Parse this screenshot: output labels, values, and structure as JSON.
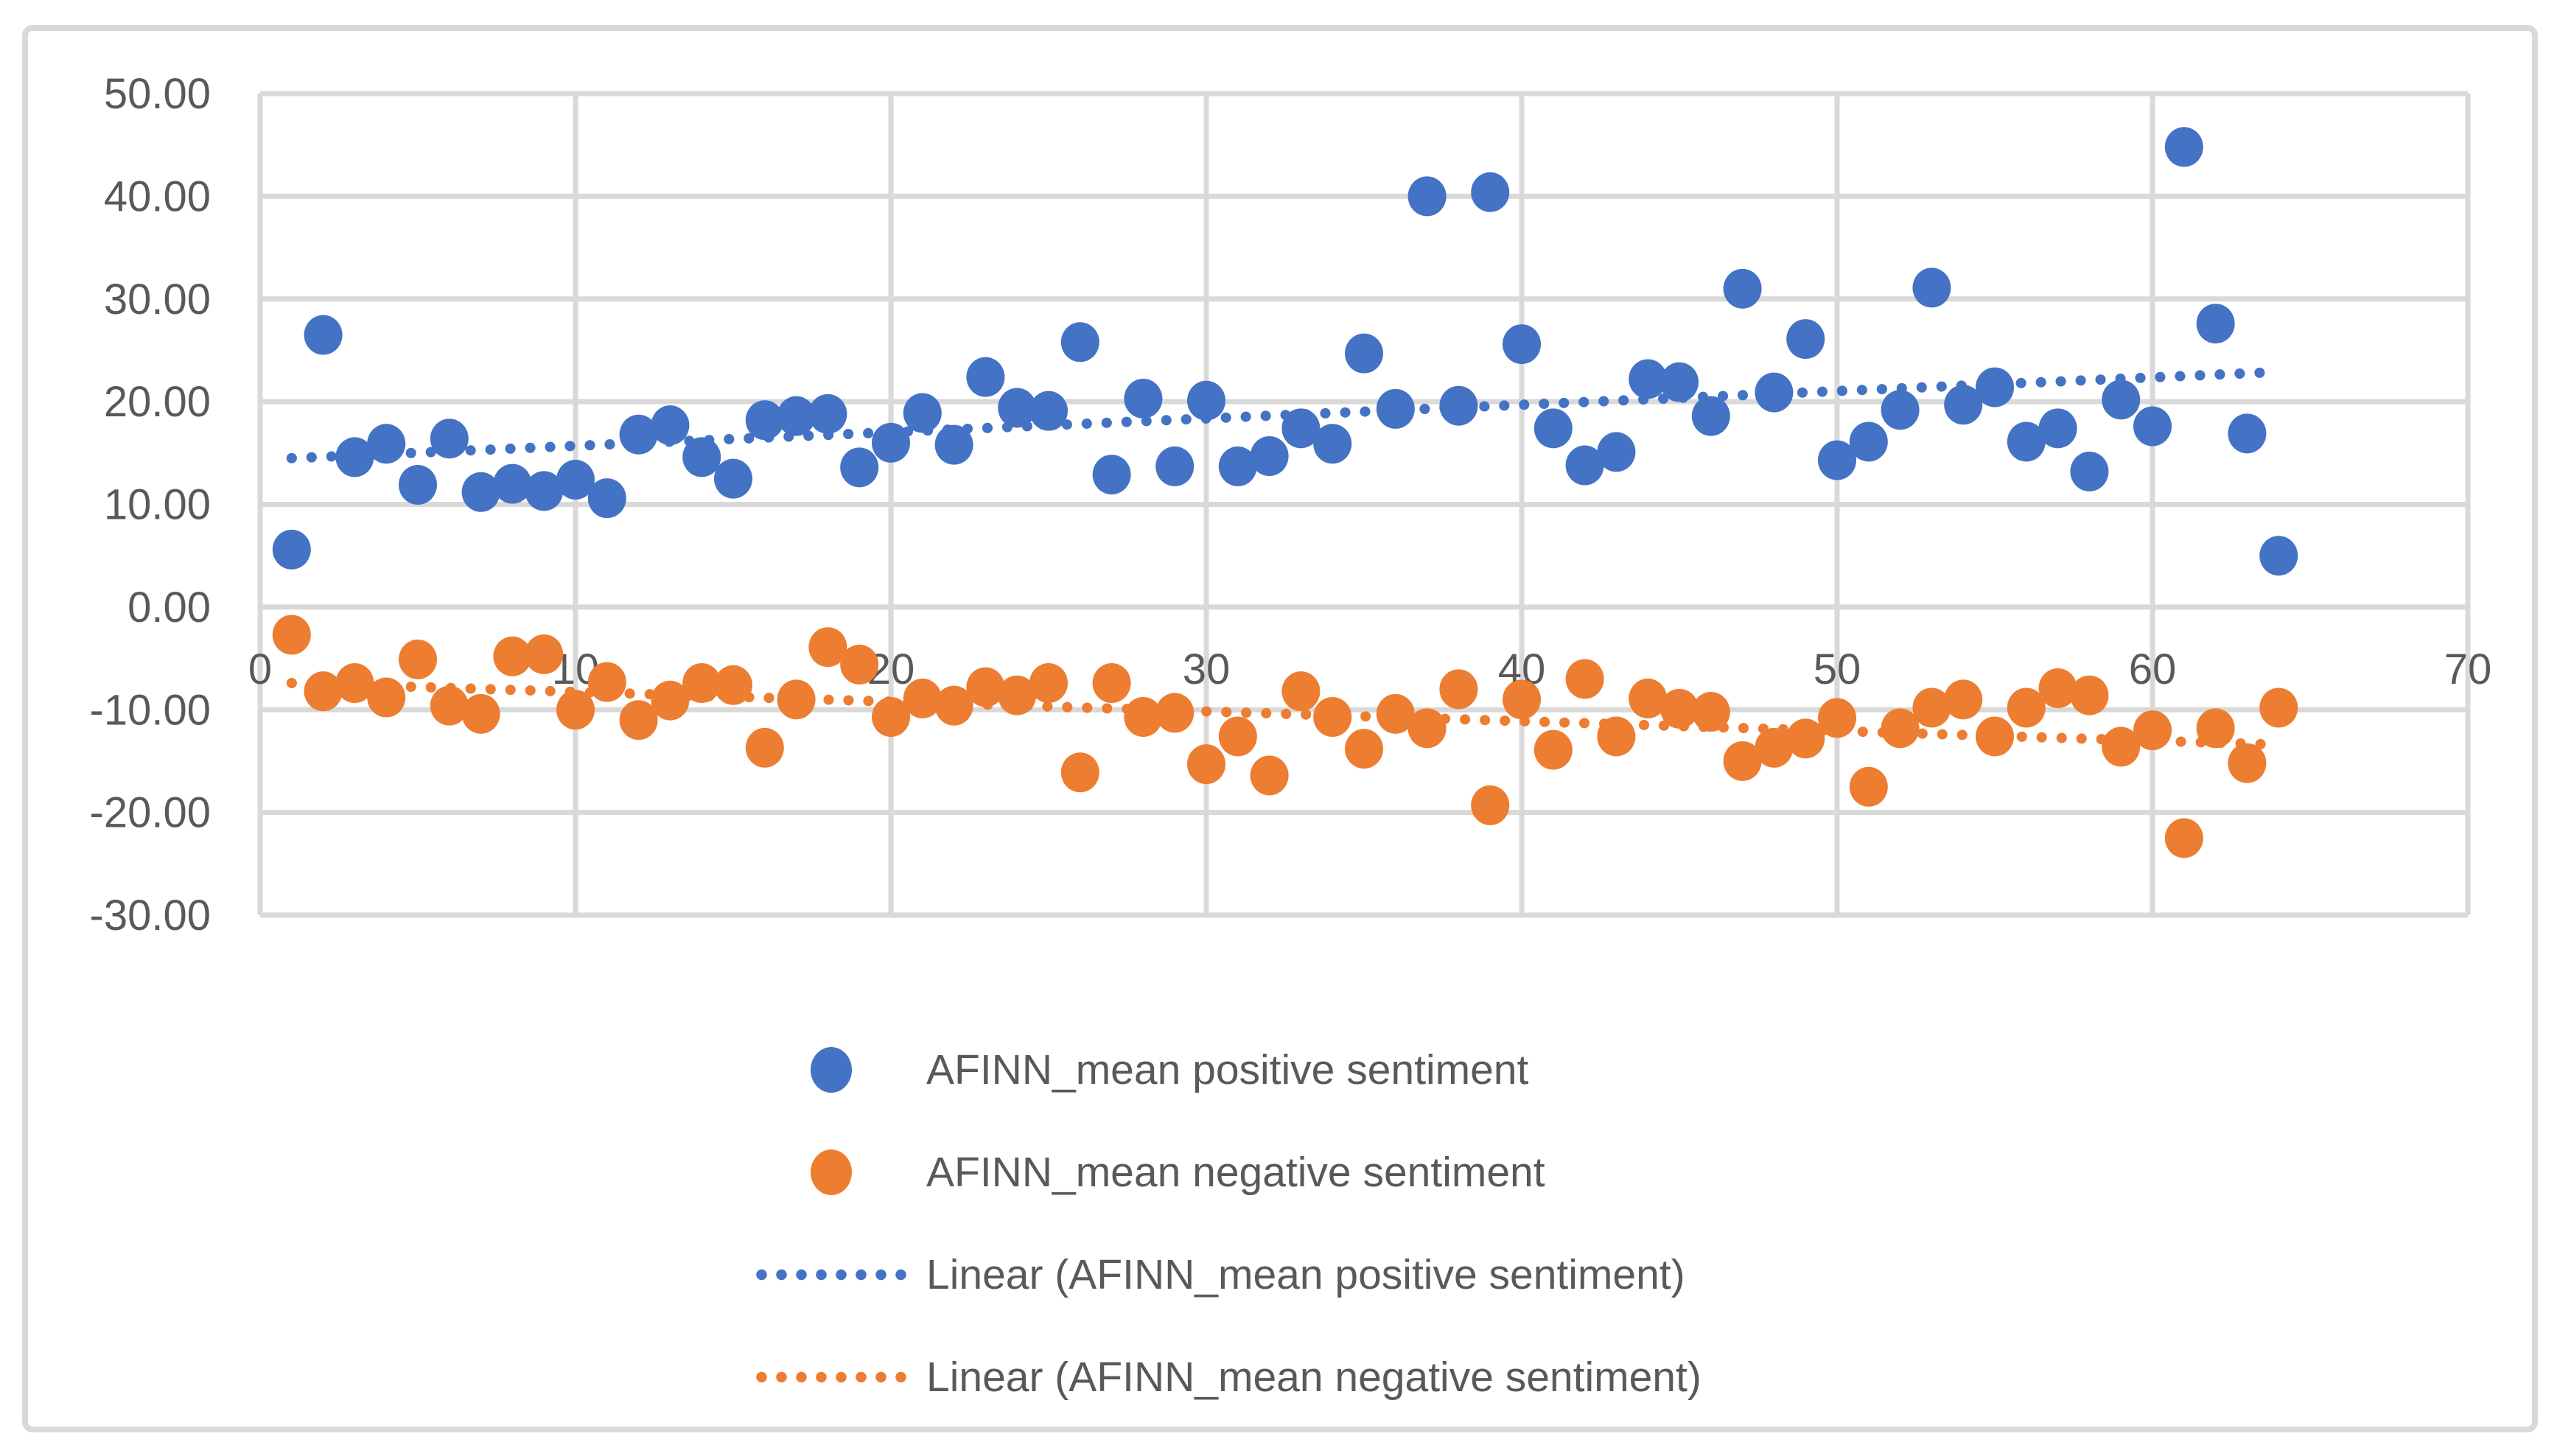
{
  "chart_data": {
    "type": "scatter",
    "title": "",
    "xlabel": "",
    "ylabel": "",
    "xlim": [
      0,
      70
    ],
    "ylim": [
      -30,
      50
    ],
    "grid": true,
    "legend_position": "bottom",
    "x_tick_labels": [
      "0",
      "10",
      "20",
      "30",
      "40",
      "50",
      "60",
      "70"
    ],
    "x_tick_values": [
      0,
      10,
      20,
      30,
      40,
      50,
      60,
      70
    ],
    "y_tick_labels": [
      "50.00",
      "40.00",
      "30.00",
      "20.00",
      "10.00",
      "0.00",
      "-10.00",
      "-20.00",
      "-30.00"
    ],
    "y_tick_values": [
      50,
      40,
      30,
      20,
      10,
      0,
      -10,
      -20,
      -30
    ],
    "x": [
      1,
      2,
      3,
      4,
      5,
      6,
      7,
      8,
      9,
      10,
      11,
      12,
      13,
      14,
      15,
      16,
      17,
      18,
      19,
      20,
      21,
      22,
      23,
      24,
      25,
      26,
      27,
      28,
      29,
      30,
      31,
      32,
      33,
      34,
      35,
      36,
      37,
      38,
      39,
      40,
      41,
      42,
      43,
      44,
      45,
      46,
      47,
      48,
      49,
      50,
      51,
      52,
      53,
      54,
      55,
      56,
      57,
      58,
      59,
      60,
      61,
      62,
      63,
      64
    ],
    "series": [
      {
        "name": "AFINN_mean positive sentiment",
        "color": "#4472C4",
        "values": [
          5.6,
          26.5,
          14.6,
          15.9,
          11.9,
          16.4,
          11.2,
          12.0,
          11.3,
          12.4,
          10.6,
          16.8,
          17.7,
          14.6,
          12.5,
          18.2,
          18.6,
          18.8,
          13.6,
          16.0,
          18.9,
          15.8,
          22.4,
          19.4,
          19.1,
          25.8,
          12.9,
          20.3,
          13.7,
          20.1,
          13.7,
          14.7,
          17.4,
          15.9,
          24.7,
          19.3,
          40.0,
          19.6,
          40.4,
          25.6,
          17.4,
          13.8,
          15.1,
          22.2,
          21.9,
          18.6,
          31.0,
          20.9,
          26.1,
          14.3,
          16.1,
          19.2,
          31.1,
          19.7,
          21.4,
          16.1,
          17.4,
          13.2,
          20.2,
          17.6,
          44.8,
          27.6,
          16.9,
          5.0
        ]
      },
      {
        "name": "AFINN_mean negative sentiment",
        "color": "#ED7D31",
        "values": [
          -2.7,
          -8.2,
          -7.4,
          -8.8,
          -5.1,
          -9.6,
          -10.4,
          -4.8,
          -4.6,
          -10.0,
          -7.3,
          -11.0,
          -9.1,
          -7.4,
          -7.6,
          -13.7,
          -9.0,
          -3.9,
          -5.6,
          -10.7,
          -8.9,
          -9.6,
          -7.8,
          -8.6,
          -7.4,
          -16.1,
          -7.4,
          -10.7,
          -10.3,
          -15.3,
          -12.6,
          -16.4,
          -8.2,
          -10.7,
          -13.8,
          -10.4,
          -11.8,
          -8.0,
          -19.3,
          -9.0,
          -13.9,
          -7.0,
          -12.6,
          -8.9,
          -9.9,
          -10.2,
          -15.0,
          -13.7,
          -12.8,
          -10.8,
          -17.5,
          -11.8,
          -9.8,
          -9.0,
          -12.6,
          -9.8,
          -7.9,
          -8.6,
          -13.6,
          -12.0,
          -22.5,
          -11.8,
          -15.2,
          -9.8
        ]
      }
    ],
    "trendlines": [
      {
        "name": "Linear (AFINN_mean positive sentiment)",
        "color": "#4472C4",
        "x1": 1,
        "y1": 14.5,
        "x2": 64,
        "y2": 22.9
      },
      {
        "name": "Linear (AFINN_mean negative sentiment)",
        "color": "#ED7D31",
        "x1": 1,
        "y1": -7.4,
        "x2": 64,
        "y2": -13.4
      }
    ]
  },
  "styles": {
    "gridline_color": "#D9D9D9",
    "axis_label_color": "#595959",
    "background_color": "#FFFFFF",
    "border_color": "#D9D9D9"
  }
}
